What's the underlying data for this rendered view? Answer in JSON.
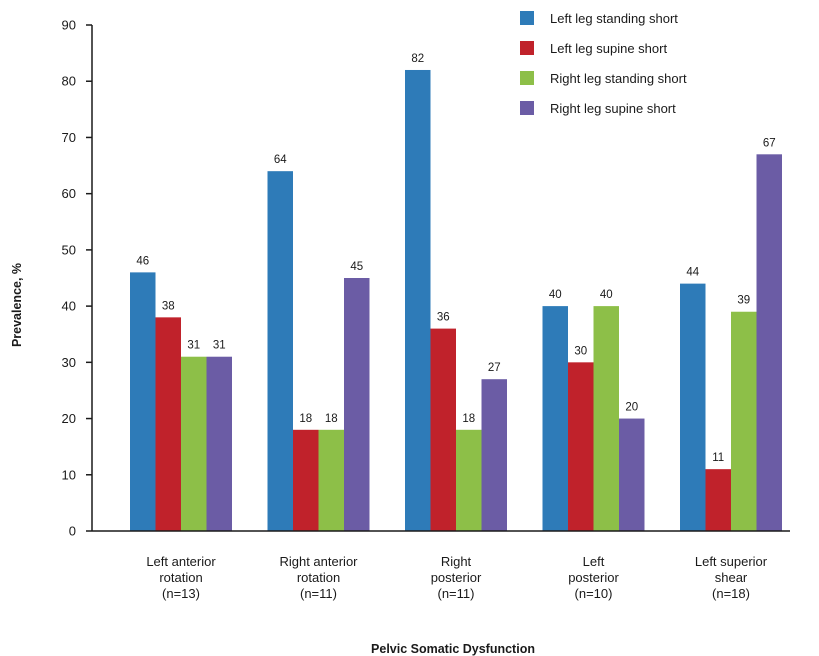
{
  "chart_data": {
    "type": "bar",
    "title": "",
    "xlabel": "Pelvic Somatic Dysfunction",
    "ylabel": "Prevalence, %",
    "ylim": [
      0,
      90
    ],
    "yticks": [
      0,
      10,
      20,
      30,
      40,
      50,
      60,
      70,
      80,
      90
    ],
    "grid": false,
    "legend_position": "top-right",
    "categories": [
      [
        "Left anterior",
        "rotation",
        "(n=13)"
      ],
      [
        "Right anterior",
        "rotation",
        "(n=11)"
      ],
      [
        "Right",
        "posterior",
        "(n=11)"
      ],
      [
        "Left",
        "posterior",
        "(n=10)"
      ],
      [
        "Left superior",
        "shear",
        "(n=18)"
      ]
    ],
    "series": [
      {
        "name": "Left leg standing short",
        "color": "#2e7bb8",
        "values": [
          46,
          64,
          82,
          40,
          44
        ]
      },
      {
        "name": "Left leg supine short",
        "color": "#c0222b",
        "values": [
          38,
          18,
          36,
          30,
          11
        ]
      },
      {
        "name": "Right leg standing short",
        "color": "#8dbf48",
        "values": [
          31,
          18,
          18,
          40,
          39
        ]
      },
      {
        "name": "Right leg supine short",
        "color": "#6b5ca5",
        "values": [
          31,
          45,
          27,
          20,
          67
        ]
      }
    ]
  }
}
